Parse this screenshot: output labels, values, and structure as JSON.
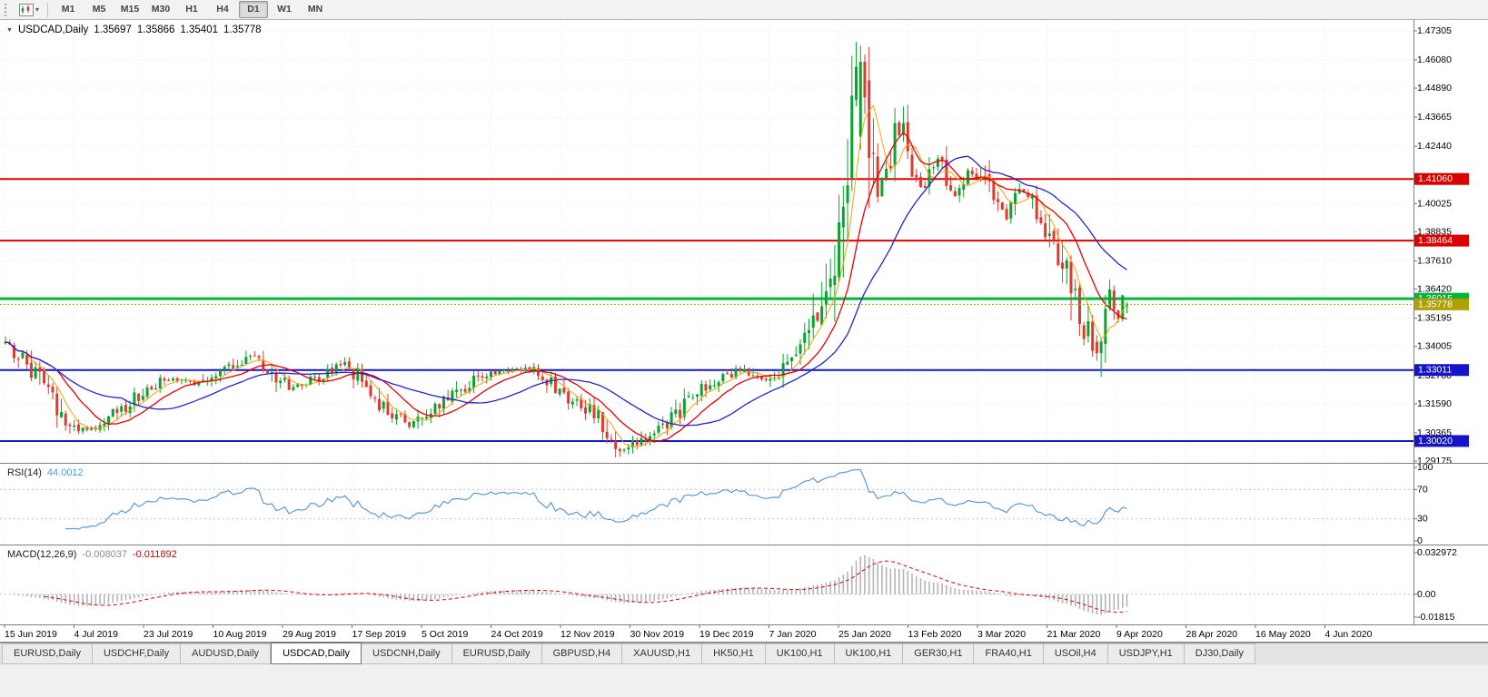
{
  "theme": {
    "bull_color": "#0ba330",
    "bear_color": "#de3b2f",
    "ma_fast_color": "#f0a500",
    "ma_mid_color": "#e80000",
    "ma_slow_color": "#2424cc",
    "rsi_line_color": "#5b9bd5",
    "macd_hist_color": "#b4b4b4",
    "macd_signal_color": "#dd0000",
    "grid_color": "#e8e8e8",
    "panel_border_color": "#808080",
    "bid_line_color": "#b0a000"
  },
  "toolbar": {
    "timeframes": [
      "M1",
      "M5",
      "M15",
      "M30",
      "H1",
      "H4",
      "D1",
      "W1",
      "MN"
    ],
    "active": "D1"
  },
  "chart": {
    "symbol_label": "USDCAD,Daily",
    "ohlc": {
      "open": "1.35697",
      "high": "1.35866",
      "low": "1.35401",
      "close": "1.35778"
    }
  },
  "price_axis": {
    "ticks": [
      "1.47305",
      "1.46080",
      "1.44890",
      "1.43665",
      "1.42440",
      "1.40025",
      "1.38835",
      "1.37610",
      "1.36420",
      "1.35195",
      "1.34005",
      "1.32780",
      "1.31590",
      "1.30365",
      "1.29175"
    ],
    "badges": [
      {
        "text": "1.41060",
        "bg": "#dd0000",
        "fg": "#ffffff"
      },
      {
        "text": "1.38464",
        "bg": "#dd0000",
        "fg": "#ffffff"
      },
      {
        "text": "1.36015",
        "bg": "#00b43c",
        "fg": "#ffffff"
      },
      {
        "text": "1.35778",
        "bg": "#b0a000",
        "fg": "#ffffff"
      },
      {
        "text": "1.33011",
        "bg": "#1414c8",
        "fg": "#ffffff"
      },
      {
        "text": "1.30020",
        "bg": "#1414c8",
        "fg": "#ffffff"
      }
    ]
  },
  "date_axis": [
    "15 Jun 2019",
    "4 Jul 2019",
    "23 Jul 2019",
    "10 Aug 2019",
    "29 Aug 2019",
    "17 Sep 2019",
    "5 Oct 2019",
    "24 Oct 2019",
    "12 Nov 2019",
    "30 Nov 2019",
    "19 Dec 2019",
    "7 Jan 2020",
    "25 Jan 2020",
    "13 Feb 2020",
    "3 Mar 2020",
    "21 Mar 2020",
    "9 Apr 2020",
    "28 Apr 2020",
    "16 May 2020",
    "4 Jun 2020"
  ],
  "rsi": {
    "label": "RSI(14)",
    "value": "44.0012",
    "levels": [
      "100",
      "70",
      "30",
      "0"
    ]
  },
  "macd": {
    "label": "MACD(12,26,9)",
    "value_main": "-0.008037",
    "value_signal": "-0.011892",
    "axis_top": "0.032972",
    "axis_zero": "0.00",
    "axis_bottom": "-0.01815"
  },
  "tabs": {
    "active_index": 3,
    "items": [
      "EURUSD,Daily",
      "USDCHF,Daily",
      "AUDUSD,Daily",
      "USDCAD,Daily",
      "USDCNH,Daily",
      "EURUSD,Daily",
      "GBPUSD,H4",
      "XAUUSD,H1",
      "HK50,H1",
      "UK100,H1",
      "UK100,H1",
      "GER30,H1",
      "FRA40,H1",
      "USOil,H4",
      "USDJPY,H1",
      "DJ30,Daily"
    ],
    "tab_prefix": "chart-tab-"
  },
  "chart_data": {
    "type": "candlestick",
    "symbol": "USDCAD",
    "period": "Daily",
    "x_range": {
      "first_label": "15 Jun 2019",
      "last_label": "4 Jun 2020"
    },
    "ylim": [
      1.291,
      1.4776
    ],
    "bar_count": 262,
    "current_bar_ohlc": [
      1.35697,
      1.35866,
      1.35401,
      1.35778
    ],
    "bid_price": 1.35778,
    "horizontal_lines": [
      {
        "price": 1.4106,
        "color": "#dd0000",
        "width": 2
      },
      {
        "price": 1.38464,
        "color": "#dd0000",
        "width": 2
      },
      {
        "price": 1.36015,
        "color": "#00b43c",
        "width": 3
      },
      {
        "price": 1.33011,
        "color": "#1414c8",
        "width": 2
      },
      {
        "price": 1.3002,
        "color": "#1414c8",
        "width": 2
      }
    ],
    "price_path_anchors": [
      [
        0,
        1.3415
      ],
      [
        4,
        1.335
      ],
      [
        9,
        1.323
      ],
      [
        14,
        1.3075
      ],
      [
        19,
        1.3048
      ],
      [
        24,
        1.3095
      ],
      [
        28,
        1.315
      ],
      [
        33,
        1.3225
      ],
      [
        38,
        1.3268
      ],
      [
        44,
        1.3245
      ],
      [
        50,
        1.3288
      ],
      [
        55,
        1.333
      ],
      [
        58,
        1.3372
      ],
      [
        62,
        1.329
      ],
      [
        66,
        1.3232
      ],
      [
        70,
        1.3248
      ],
      [
        74,
        1.3278
      ],
      [
        79,
        1.3328
      ],
      [
        83,
        1.3258
      ],
      [
        86,
        1.3185
      ],
      [
        90,
        1.3112
      ],
      [
        94,
        1.3062
      ],
      [
        98,
        1.3108
      ],
      [
        103,
        1.3182
      ],
      [
        108,
        1.3248
      ],
      [
        113,
        1.3288
      ],
      [
        118,
        1.3302
      ],
      [
        122,
        1.3312
      ],
      [
        125,
        1.3272
      ],
      [
        128,
        1.3232
      ],
      [
        132,
        1.3168
      ],
      [
        136,
        1.3132
      ],
      [
        139,
        1.3082
      ],
      [
        142,
        1.2988
      ],
      [
        144,
        1.2968
      ],
      [
        147,
        1.3002
      ],
      [
        151,
        1.3038
      ],
      [
        156,
        1.3108
      ],
      [
        160,
        1.3182
      ],
      [
        164,
        1.3242
      ],
      [
        168,
        1.3282
      ],
      [
        172,
        1.3302
      ],
      [
        176,
        1.3252
      ],
      [
        180,
        1.3292
      ],
      [
        183,
        1.3362
      ],
      [
        186,
        1.3402
      ],
      [
        189,
        1.3562
      ],
      [
        192,
        1.3752
      ],
      [
        194,
        1.3905
      ],
      [
        196,
        1.4205
      ],
      [
        198,
        1.4485
      ],
      [
        199,
        1.458
      ],
      [
        200,
        1.445
      ],
      [
        202,
        1.4205
      ],
      [
        203,
        1.4055
      ],
      [
        205,
        1.4155
      ],
      [
        207,
        1.4285
      ],
      [
        209,
        1.4302
      ],
      [
        211,
        1.4155
      ],
      [
        213,
        1.4055
      ],
      [
        215,
        1.4125
      ],
      [
        217,
        1.4185
      ],
      [
        219,
        1.4115
      ],
      [
        221,
        1.4035
      ],
      [
        223,
        1.4095
      ],
      [
        225,
        1.4135
      ],
      [
        227,
        1.4105
      ],
      [
        229,
        1.4065
      ],
      [
        231,
        1.3995
      ],
      [
        233,
        1.3945
      ],
      [
        235,
        1.4015
      ],
      [
        237,
        1.4062
      ],
      [
        239,
        1.3995
      ],
      [
        241,
        1.3955
      ],
      [
        243,
        1.3855
      ],
      [
        245,
        1.3795
      ],
      [
        247,
        1.3725
      ],
      [
        249,
        1.3585
      ],
      [
        251,
        1.3485
      ],
      [
        253,
        1.3405
      ],
      [
        254,
        1.3368
      ],
      [
        255,
        1.3425
      ],
      [
        256,
        1.3525
      ],
      [
        257,
        1.3605
      ],
      [
        258,
        1.3565
      ],
      [
        259,
        1.3535
      ],
      [
        260,
        1.3612
      ],
      [
        261,
        1.3578
      ]
    ],
    "key_bars": [
      {
        "bar": 199,
        "o": 1.4285,
        "h": 1.4668,
        "l": 1.423,
        "c": 1.46
      },
      {
        "bar": 200,
        "o": 1.46,
        "h": 1.463,
        "l": 1.438,
        "c": 1.445
      },
      {
        "bar": 254,
        "o": 1.342,
        "h": 1.3448,
        "l": 1.334,
        "c": 1.3372
      },
      {
        "bar": 261,
        "o": 1.35697,
        "h": 1.35866,
        "l": 1.35401,
        "c": 1.35778
      }
    ],
    "indicators": {
      "rsi": {
        "period": 14,
        "current": 44.0012,
        "levels": [
          100,
          70,
          30,
          0
        ]
      },
      "macd": {
        "fast": 12,
        "slow": 26,
        "signal_period": 9,
        "current_main": -0.008037,
        "current_signal": -0.011892,
        "axis_max": 0.032972,
        "axis_min": -0.01815
      }
    }
  }
}
